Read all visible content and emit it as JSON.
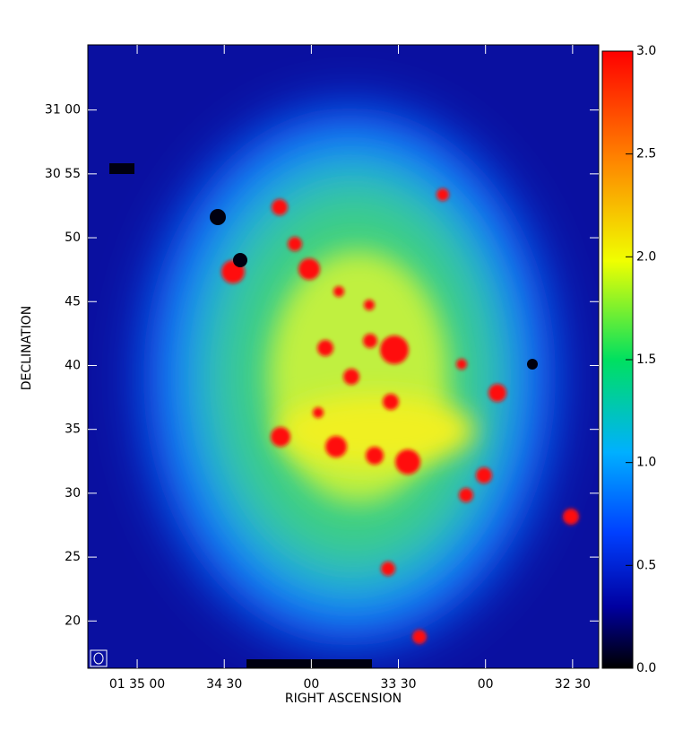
{
  "chart_data": {
    "type": "image",
    "xlabel": "RIGHT ASCENSION",
    "ylabel": "DECLINATION",
    "xlim": [
      5717,
      5541
    ],
    "xticks": [
      {
        "value": 5700,
        "label": "01 35 00"
      },
      {
        "value": 5670,
        "label": "34 30"
      },
      {
        "value": 5640,
        "label": "00"
      },
      {
        "value": 5610,
        "label": "33 30"
      },
      {
        "value": 5580,
        "label": "00"
      },
      {
        "value": 5550,
        "label": "32 30"
      }
    ],
    "ylim": [
      16.3,
      65.1
    ],
    "yticks": [
      {
        "value": 60,
        "label": "31 00"
      },
      {
        "value": 55,
        "label": "30 55"
      },
      50,
      45,
      40,
      35,
      30,
      25,
      20
    ],
    "clim": [
      0,
      3
    ],
    "cticks": [
      {
        "value": 0,
        "label": "0.0"
      },
      {
        "value": 0.5,
        "label": "0.5"
      },
      {
        "value": 1,
        "label": "1.0"
      },
      {
        "value": 1.5,
        "label": "1.5"
      },
      {
        "value": 2,
        "label": "2.0"
      },
      {
        "value": 2.5,
        "label": "2.5"
      },
      {
        "value": 3,
        "label": "3.0"
      }
    ]
  }
}
